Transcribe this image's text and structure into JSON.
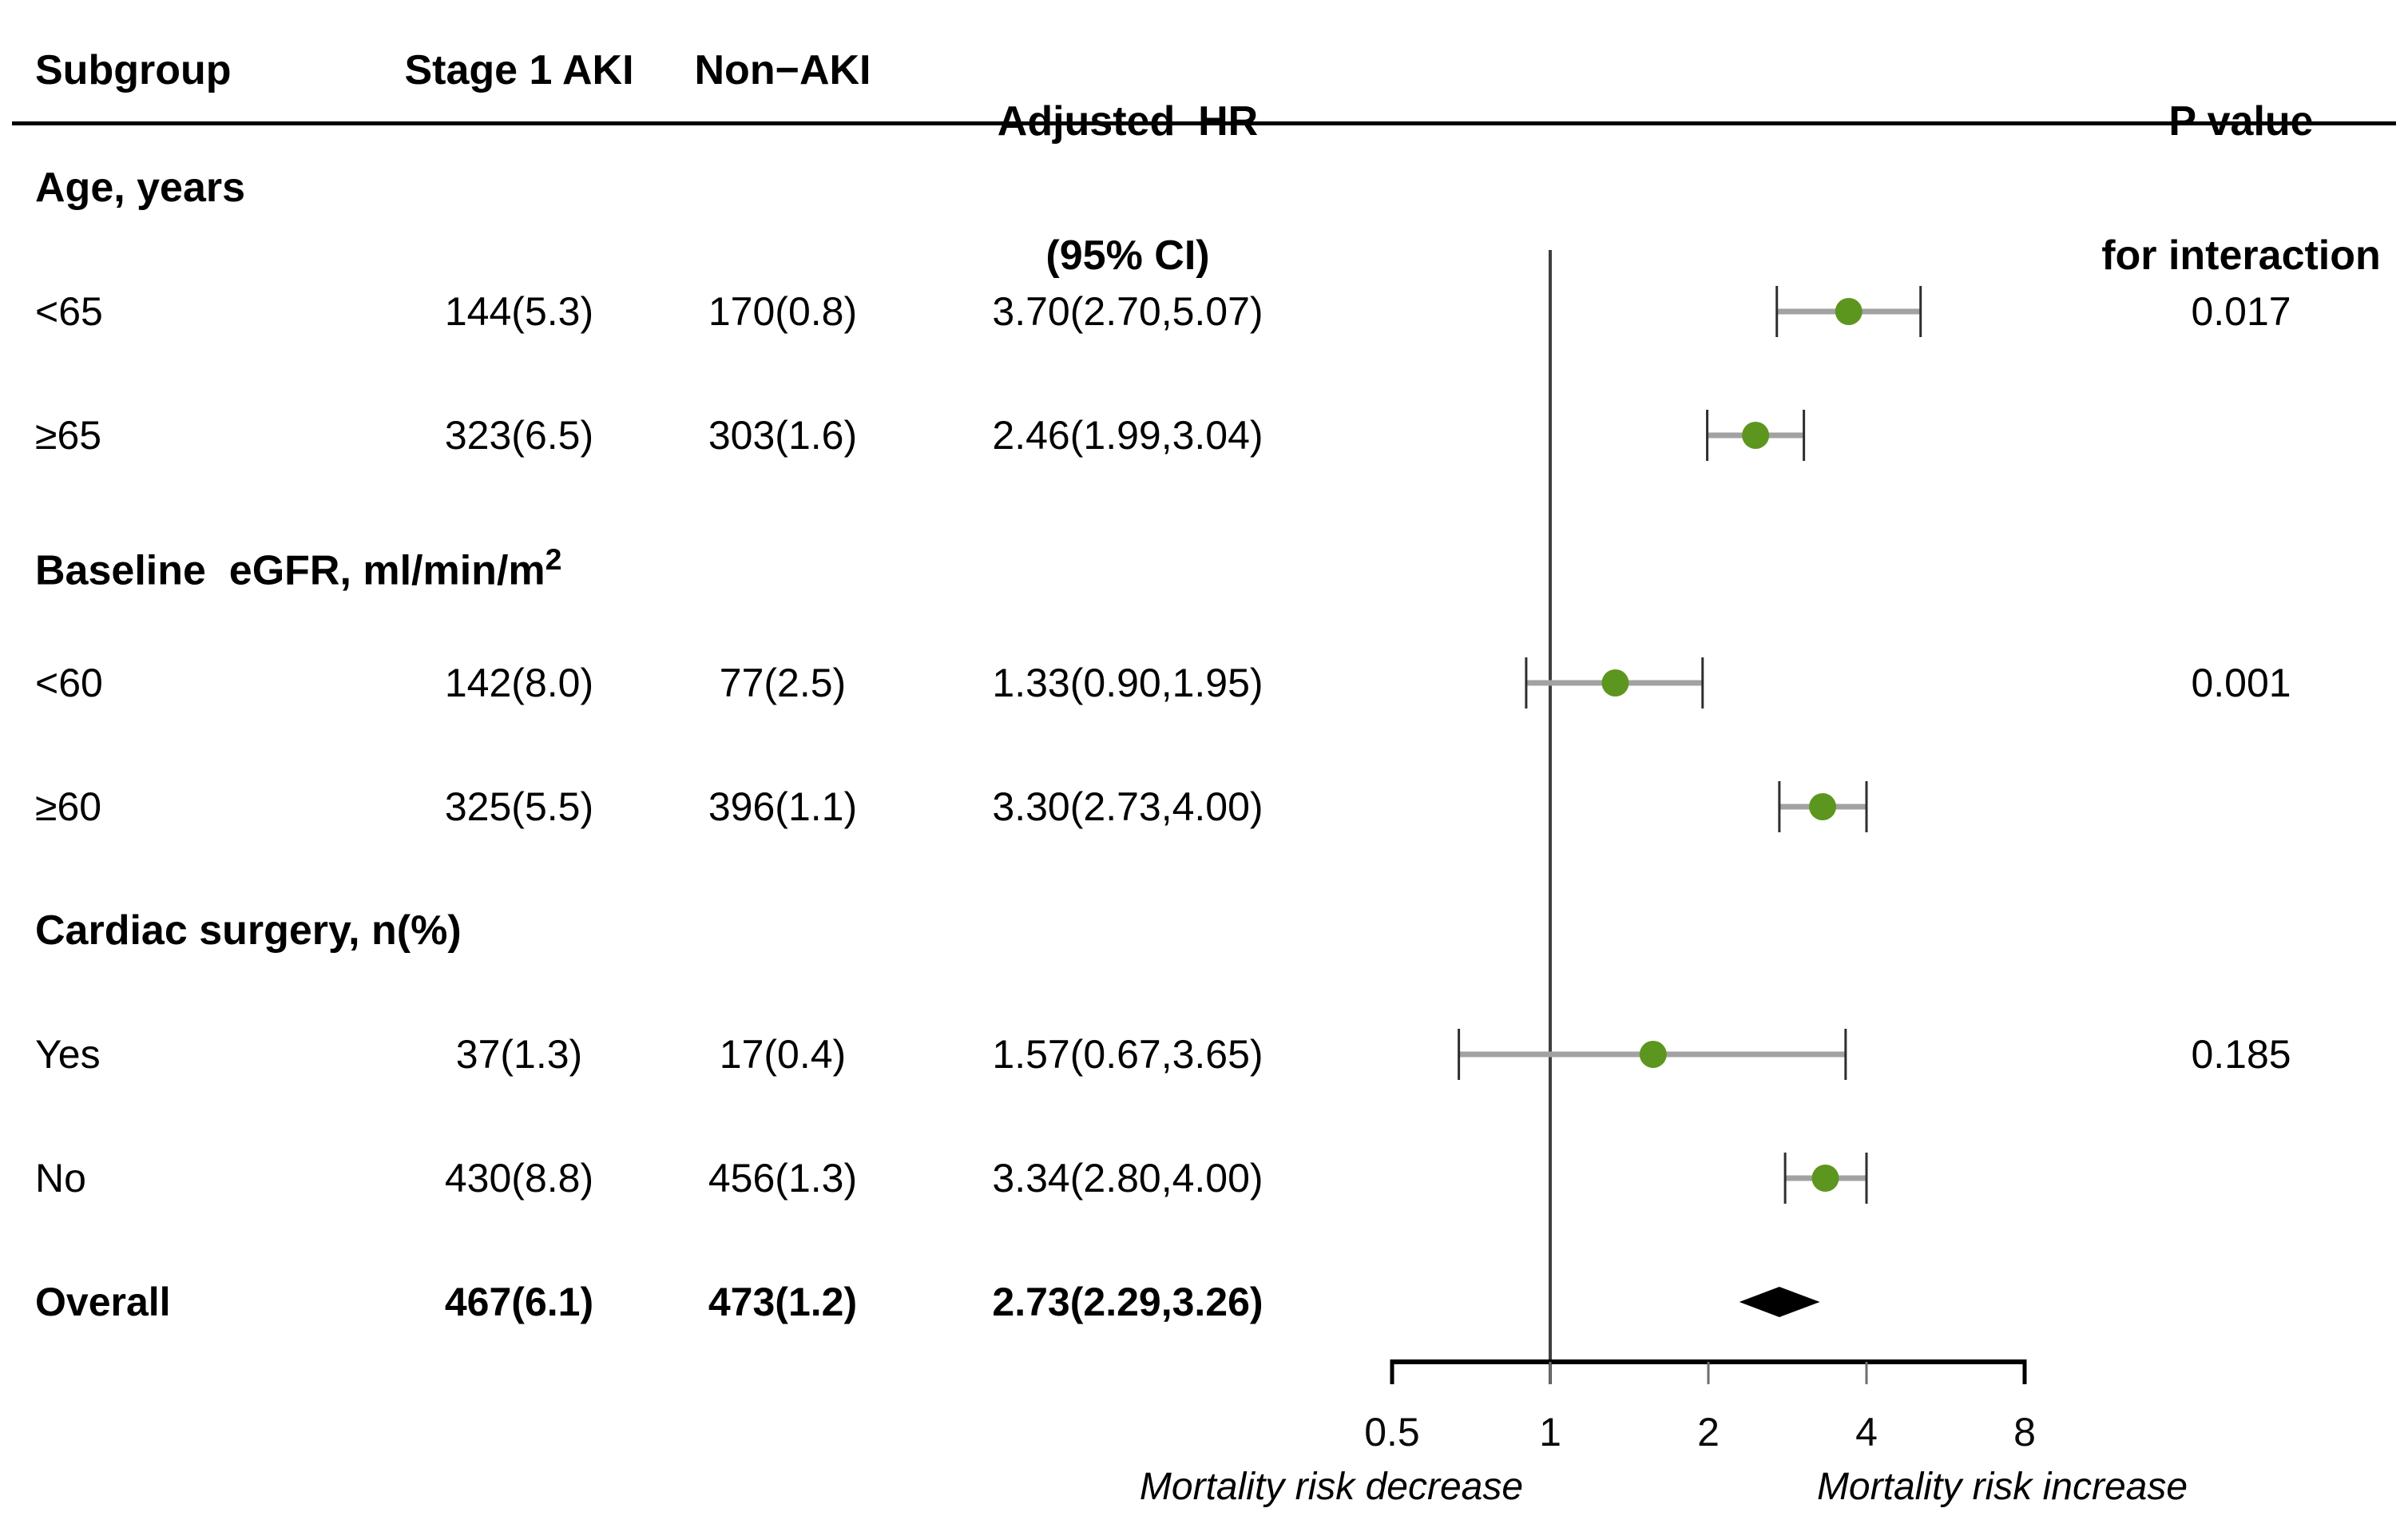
{
  "header": {
    "subgroup": "Subgroup",
    "stage1_aki": "Stage 1 AKI",
    "non_aki": "Non−AKI",
    "adjusted_hr_line1": "Adjusted  HR",
    "adjusted_hr_line2": "(95% CI)",
    "p_value_line1": "P value",
    "p_value_line2": "for interaction"
  },
  "chart_data": {
    "type": "forest",
    "x_axis": {
      "scale": "log2",
      "range": [
        0.5,
        8
      ],
      "tick_values": [
        0.5,
        1,
        2,
        4,
        8
      ],
      "tick_labels": [
        "0.5",
        "1",
        "2",
        "4",
        "8"
      ],
      "reference_value": 1,
      "caption_left": "Mortality risk decrease",
      "caption_right": "Mortality risk increase"
    },
    "style": {
      "marker_color": "#5c961e",
      "ci_line_color": "#a2a2a2",
      "whisker_color": "#2e2e2e",
      "diamond_color": "#000000",
      "reference_line_color": "#3f3f3f",
      "axis_color": "#000000"
    },
    "rows": [
      {
        "kind": "section",
        "label": "Age, years"
      },
      {
        "kind": "data",
        "label": "<65",
        "stage1_aki": "144(5.3)",
        "non_aki": "170(0.8)",
        "hr_text": "3.70(2.70,5.07)",
        "hr": 3.7,
        "ci_low": 2.7,
        "ci_high": 5.07,
        "p_interaction": "0.017",
        "marker": "circle"
      },
      {
        "kind": "data",
        "label": "≥65",
        "stage1_aki": "323(6.5)",
        "non_aki": "303(1.6)",
        "hr_text": "2.46(1.99,3.04)",
        "hr": 2.46,
        "ci_low": 1.99,
        "ci_high": 3.04,
        "p_interaction": "",
        "marker": "circle"
      },
      {
        "kind": "section",
        "label": "Baseline  eGFR, ml/min/m",
        "label_sup": "2"
      },
      {
        "kind": "data",
        "label": "<60",
        "stage1_aki": "142(8.0)",
        "non_aki": "77(2.5)",
        "hr_text": "1.33(0.90,1.95)",
        "hr": 1.33,
        "ci_low": 0.9,
        "ci_high": 1.95,
        "p_interaction": "0.001",
        "marker": "circle"
      },
      {
        "kind": "data",
        "label": "≥60",
        "stage1_aki": "325(5.5)",
        "non_aki": "396(1.1)",
        "hr_text": "3.30(2.73,4.00)",
        "hr": 3.3,
        "ci_low": 2.73,
        "ci_high": 4.0,
        "p_interaction": "",
        "marker": "circle"
      },
      {
        "kind": "section",
        "label": "Cardiac surgery, n(%)"
      },
      {
        "kind": "data",
        "label": "Yes",
        "stage1_aki": "37(1.3)",
        "non_aki": "17(0.4)",
        "hr_text": "1.57(0.67,3.65)",
        "hr": 1.57,
        "ci_low": 0.67,
        "ci_high": 3.65,
        "p_interaction": "0.185",
        "marker": "circle"
      },
      {
        "kind": "data",
        "label": "No",
        "stage1_aki": "430(8.8)",
        "non_aki": "456(1.3)",
        "hr_text": "3.34(2.80,4.00)",
        "hr": 3.34,
        "ci_low": 2.8,
        "ci_high": 4.0,
        "p_interaction": "",
        "marker": "circle"
      },
      {
        "kind": "data",
        "label": "Overall",
        "stage1_aki": "467(6.1)",
        "non_aki": "473(1.2)",
        "hr_text": "2.73(2.29,3.26)",
        "hr": 2.73,
        "ci_low": 2.29,
        "ci_high": 3.26,
        "p_interaction": "",
        "marker": "diamond",
        "bold": true
      }
    ]
  }
}
